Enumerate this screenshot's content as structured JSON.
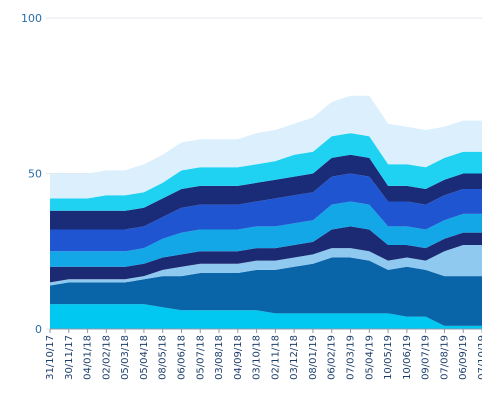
{
  "chart_data": {
    "type": "area",
    "stacked": true,
    "title": "",
    "xlabel": "",
    "ylabel": "",
    "ylim": [
      0,
      100
    ],
    "yticks": [
      0,
      50,
      100
    ],
    "grid": "horizontal",
    "legend": "none",
    "categories": [
      "31/10/17",
      "30/11/17",
      "04/01/18",
      "02/02/18",
      "05/03/18",
      "05/04/18",
      "08/05/18",
      "06/06/18",
      "05/07/18",
      "03/08/18",
      "04/09/18",
      "03/10/18",
      "02/11/18",
      "03/12/18",
      "08/01/19",
      "06/02/19",
      "07/03/19",
      "05/04/19",
      "10/05/19",
      "10/06/19",
      "09/07/19",
      "07/08/19",
      "06/09/19",
      "07/10/19"
    ],
    "series": [
      {
        "color": "#00c8f0",
        "values": [
          8,
          8,
          8,
          8,
          8,
          8,
          7,
          6,
          6,
          6,
          6,
          6,
          5,
          5,
          5,
          5,
          5,
          5,
          5,
          4,
          4,
          1,
          1,
          1
        ]
      },
      {
        "color": "#0a64a8",
        "values": [
          6,
          7,
          7,
          7,
          7,
          8,
          10,
          11,
          12,
          12,
          12,
          13,
          14,
          15,
          16,
          18,
          18,
          17,
          14,
          16,
          15,
          16,
          16,
          16
        ]
      },
      {
        "color": "#8fc9f0",
        "values": [
          1,
          1,
          1,
          1,
          1,
          1,
          2,
          3,
          3,
          3,
          3,
          3,
          3,
          3,
          3,
          3,
          3,
          3,
          3,
          3,
          3,
          8,
          10,
          10
        ]
      },
      {
        "color": "#1b2a72",
        "values": [
          5,
          4,
          4,
          4,
          4,
          4,
          4,
          4,
          4,
          4,
          4,
          4,
          4,
          4,
          4,
          6,
          7,
          7,
          5,
          4,
          4,
          4,
          4,
          4
        ]
      },
      {
        "color": "#14a7e8",
        "values": [
          5,
          5,
          5,
          5,
          5,
          5,
          6,
          7,
          7,
          7,
          7,
          7,
          7,
          7,
          7,
          8,
          8,
          8,
          6,
          6,
          6,
          6,
          6,
          6
        ]
      },
      {
        "color": "#1f55d0",
        "values": [
          7,
          7,
          7,
          7,
          7,
          7,
          7,
          8,
          8,
          8,
          8,
          8,
          9,
          9,
          9,
          9,
          9,
          9,
          8,
          8,
          8,
          8,
          8,
          8
        ]
      },
      {
        "color": "#1a2c78",
        "values": [
          6,
          6,
          6,
          6,
          6,
          6,
          6,
          6,
          6,
          6,
          6,
          6,
          6,
          6,
          6,
          6,
          6,
          6,
          5,
          5,
          5,
          5,
          5,
          5
        ]
      },
      {
        "color": "#1fd2f2",
        "values": [
          4,
          4,
          4,
          5,
          5,
          5,
          5,
          6,
          6,
          6,
          6,
          6,
          6,
          7,
          7,
          7,
          7,
          7,
          7,
          7,
          7,
          7,
          7,
          7
        ]
      },
      {
        "color": "#dceffd",
        "values": [
          8,
          8,
          8,
          8,
          8,
          9,
          9,
          9,
          9,
          9,
          9,
          10,
          10,
          10,
          11,
          11,
          12,
          13,
          13,
          12,
          12,
          10,
          10,
          10
        ]
      }
    ]
  }
}
